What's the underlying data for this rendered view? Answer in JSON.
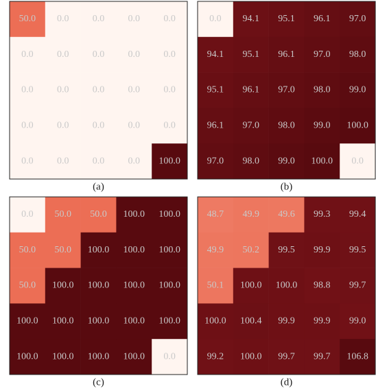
{
  "chart_data": [
    {
      "type": "heatmap",
      "caption": "(a)",
      "values": [
        [
          50,
          0,
          0,
          0,
          0
        ],
        [
          0,
          0,
          0,
          0,
          0
        ],
        [
          0,
          0,
          0,
          0,
          0
        ],
        [
          0,
          0,
          0,
          0,
          0
        ],
        [
          0,
          0,
          0,
          0,
          100
        ]
      ],
      "value_labels": [
        [
          "50.0",
          "0.0",
          "0.0",
          "0.0",
          "0.0"
        ],
        [
          "0.0",
          "0.0",
          "0.0",
          "0.0",
          "0.0"
        ],
        [
          "0.0",
          "0.0",
          "0.0",
          "0.0",
          "0.0"
        ],
        [
          "0.0",
          "0.0",
          "0.0",
          "0.0",
          "0.0"
        ],
        [
          "0.0",
          "0.0",
          "0.0",
          "0.0",
          "100.0"
        ]
      ]
    },
    {
      "type": "heatmap",
      "caption": "(b)",
      "values": [
        [
          0,
          94.1,
          95.1,
          96.1,
          97
        ],
        [
          94.1,
          95.1,
          96.1,
          97,
          98
        ],
        [
          95.1,
          96.1,
          97,
          98,
          99
        ],
        [
          96.1,
          97,
          98,
          99,
          100
        ],
        [
          97,
          98,
          99,
          100,
          0
        ]
      ],
      "value_labels": [
        [
          "0.0",
          "94.1",
          "95.1",
          "96.1",
          "97.0"
        ],
        [
          "94.1",
          "95.1",
          "96.1",
          "97.0",
          "98.0"
        ],
        [
          "95.1",
          "96.1",
          "97.0",
          "98.0",
          "99.0"
        ],
        [
          "96.1",
          "97.0",
          "98.0",
          "99.0",
          "100.0"
        ],
        [
          "97.0",
          "98.0",
          "99.0",
          "100.0",
          "0.0"
        ]
      ]
    },
    {
      "type": "heatmap",
      "caption": "(c)",
      "values": [
        [
          0,
          50,
          50,
          100,
          100
        ],
        [
          50,
          50,
          100,
          100,
          100
        ],
        [
          50,
          100,
          100,
          100,
          100
        ],
        [
          100,
          100,
          100,
          100,
          100
        ],
        [
          100,
          100,
          100,
          100,
          0
        ]
      ],
      "value_labels": [
        [
          "0.0",
          "50.0",
          "50.0",
          "100.0",
          "100.0"
        ],
        [
          "50.0",
          "50.0",
          "100.0",
          "100.0",
          "100.0"
        ],
        [
          "50.0",
          "100.0",
          "100.0",
          "100.0",
          "100.0"
        ],
        [
          "100.0",
          "100.0",
          "100.0",
          "100.0",
          "100.0"
        ],
        [
          "100.0",
          "100.0",
          "100.0",
          "100.0",
          "0.0"
        ]
      ]
    },
    {
      "type": "heatmap",
      "caption": "(d)",
      "values": [
        [
          48.7,
          49.9,
          49.6,
          99.3,
          99.4
        ],
        [
          49.9,
          50.2,
          99.5,
          99.9,
          99.5
        ],
        [
          50.1,
          100,
          100,
          98.8,
          99.7
        ],
        [
          100,
          100.4,
          99.9,
          99.9,
          99
        ],
        [
          99.2,
          100,
          99.7,
          99.7,
          106.8
        ]
      ],
      "value_labels": [
        [
          "48.7",
          "49.9",
          "49.6",
          "99.3",
          "99.4"
        ],
        [
          "49.9",
          "50.2",
          "99.5",
          "99.9",
          "99.5"
        ],
        [
          "50.1",
          "100.0",
          "100.0",
          "98.8",
          "99.7"
        ],
        [
          "100.0",
          "100.4",
          "99.9",
          "99.9",
          "99.0"
        ],
        [
          "99.2",
          "100.0",
          "99.7",
          "99.7",
          "106.8"
        ]
      ]
    }
  ]
}
